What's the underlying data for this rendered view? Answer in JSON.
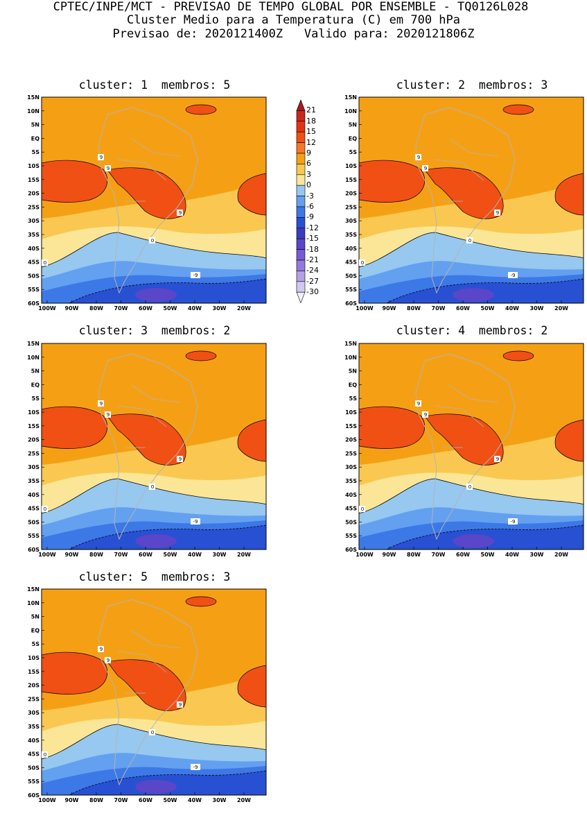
{
  "header": {
    "line1": "CPTEC/INPE/MCT - PREVISAO DE TEMPO GLOBAL POR ENSEMBLE - TQ0126L028",
    "line2": "Cluster Medio para a Temperatura (C) em 700 hPa",
    "line3": "Previsao de: 2020121400Z   Valido para: 2020121806Z"
  },
  "panels": [
    {
      "title": "cluster: 1  membros: 5"
    },
    {
      "title": "cluster: 2  membros: 3"
    },
    {
      "title": "cluster: 3  membros: 2"
    },
    {
      "title": "cluster: 4  membros: 2"
    },
    {
      "title": "cluster: 5  membros: 3"
    }
  ],
  "axes": {
    "lat_labels": [
      "15N",
      "10N",
      "5N",
      "EQ",
      "5S",
      "10S",
      "15S",
      "20S",
      "25S",
      "30S",
      "35S",
      "40S",
      "45S",
      "50S",
      "55S",
      "60S"
    ],
    "lon_labels": [
      "100W",
      "90W",
      "80W",
      "70W",
      "60W",
      "50W",
      "40W",
      "30W",
      "20W"
    ]
  },
  "contour_labels": {
    "c9": "9",
    "c0": "0",
    "cm9": "-9"
  },
  "colorbar": {
    "levels": [
      "21",
      "18",
      "15",
      "12",
      "9",
      "6",
      "3",
      "0",
      "-3",
      "-6",
      "-9",
      "-12",
      "-15",
      "-18",
      "-21",
      "-24",
      "-27",
      "-30"
    ],
    "colors": [
      "#a01e1e",
      "#c8281e",
      "#e63214",
      "#f05014",
      "#f57828",
      "#f5a014",
      "#fac850",
      "#fae696",
      "#96c8f0",
      "#64a0f0",
      "#3c78e6",
      "#2850d2",
      "#3c3cbe",
      "#5a46c8",
      "#785ad2",
      "#9678dc",
      "#b4a0e6",
      "#d2c8f0",
      "#f0f0fa"
    ]
  }
}
